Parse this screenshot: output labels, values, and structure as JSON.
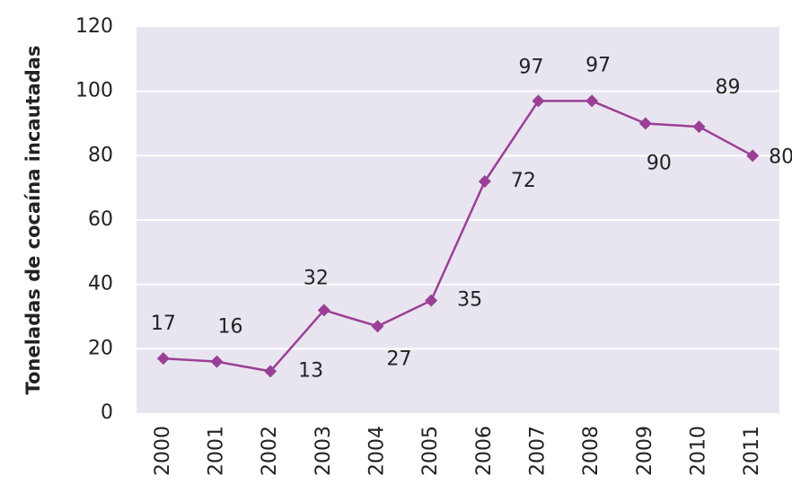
{
  "chart_data": {
    "type": "line",
    "y_label": "Toneladas de cocaína incautadas",
    "categories": [
      "2000",
      "2001",
      "2002",
      "2003",
      "2004",
      "2005",
      "2006",
      "2007",
      "2008",
      "2009",
      "2010",
      "2011"
    ],
    "values": [
      17,
      16,
      13,
      32,
      27,
      35,
      72,
      97,
      97,
      90,
      89,
      80
    ],
    "color": "#9b3f96",
    "ylim": [
      0,
      120
    ],
    "yticks": [
      0,
      20,
      40,
      60,
      80,
      100,
      120
    ],
    "grid": true
  }
}
